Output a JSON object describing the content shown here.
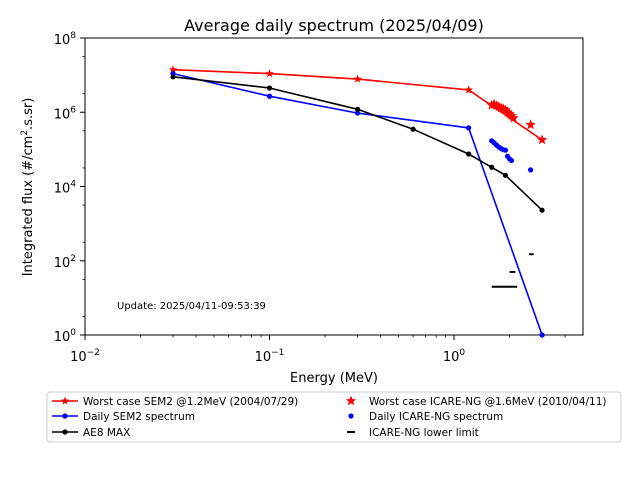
{
  "chart_data": {
    "type": "scatter",
    "title": "Average daily spectrum (2025/04/09)",
    "xlabel": "Energy (MeV)",
    "ylabel": "Integrated flux (#/cm2.s.sr)",
    "xscale": "log",
    "yscale": "log",
    "xlim": [
      0.01,
      5
    ],
    "ylim": [
      1,
      100000000
    ],
    "x_ticks": [
      {
        "value": 0.01,
        "base": "10",
        "exp": "−2"
      },
      {
        "value": 0.1,
        "base": "10",
        "exp": "−1"
      },
      {
        "value": 1,
        "base": "10",
        "exp": "0"
      }
    ],
    "y_ticks": [
      {
        "value": 1,
        "base": "10",
        "exp": "0"
      },
      {
        "value": 100,
        "base": "10",
        "exp": "2"
      },
      {
        "value": 10000,
        "base": "10",
        "exp": "4"
      },
      {
        "value": 1000000,
        "base": "10",
        "exp": "6"
      },
      {
        "value": 100000000,
        "base": "10",
        "exp": "8"
      }
    ],
    "annotation": "Update: 2025/04/11-09:53:39",
    "grid": false,
    "legend_position": "below",
    "series": [
      {
        "name": "Worst case SEM2 @1.2MeV (2004/07/29)",
        "color": "#ff0000",
        "style": "line-star",
        "x": [
          0.03,
          0.1,
          0.3,
          1.2,
          3.0
        ],
        "y": [
          14000000,
          11000000,
          7800000,
          4000000,
          180000
        ]
      },
      {
        "name": "Daily SEM2 spectrum",
        "color": "#0000ff",
        "style": "line-dot",
        "x": [
          0.03,
          0.1,
          0.3,
          1.2,
          3.0
        ],
        "y": [
          11000000,
          2700000,
          950000,
          380000,
          1
        ]
      },
      {
        "name": "AE8 MAX",
        "color": "#000000",
        "style": "line-dot",
        "x": [
          0.03,
          0.1,
          0.3,
          0.6,
          1.2,
          1.6,
          1.9,
          3.0
        ],
        "y": [
          9000000,
          4500000,
          1200000,
          350000,
          75000,
          33000,
          20000,
          2300
        ]
      },
      {
        "name": "Worst case ICARE-NG @1.6MeV (2010/04/11)",
        "color": "#ff0000",
        "style": "star",
        "x": [
          1.6,
          1.65,
          1.7,
          1.75,
          1.8,
          1.85,
          1.9,
          1.95,
          2.0,
          2.05,
          2.1,
          2.6,
          3.0
        ],
        "y": [
          1550000,
          1650000,
          1500000,
          1400000,
          1300000,
          1250000,
          1150000,
          1000000,
          900000,
          800000,
          700000,
          460000,
          180000
        ]
      },
      {
        "name": "Daily ICARE-NG spectrum",
        "color": "#0000ff",
        "style": "dot",
        "x": [
          1.6,
          1.65,
          1.7,
          1.75,
          1.8,
          1.85,
          1.9,
          1.95,
          2.0,
          2.05,
          2.6
        ],
        "y": [
          170000,
          150000,
          130000,
          115000,
          105000,
          98000,
          95000,
          65000,
          55000,
          50000,
          28000
        ]
      },
      {
        "name": "ICARE-NG lower limit",
        "color": "#000000",
        "style": "hline",
        "segments": [
          {
            "x1": 1.6,
            "x2": 2.2,
            "y": 20
          },
          {
            "x1": 2.0,
            "x2": 2.15,
            "y": 50
          },
          {
            "x1": 2.55,
            "x2": 2.7,
            "y": 150
          }
        ]
      }
    ]
  }
}
